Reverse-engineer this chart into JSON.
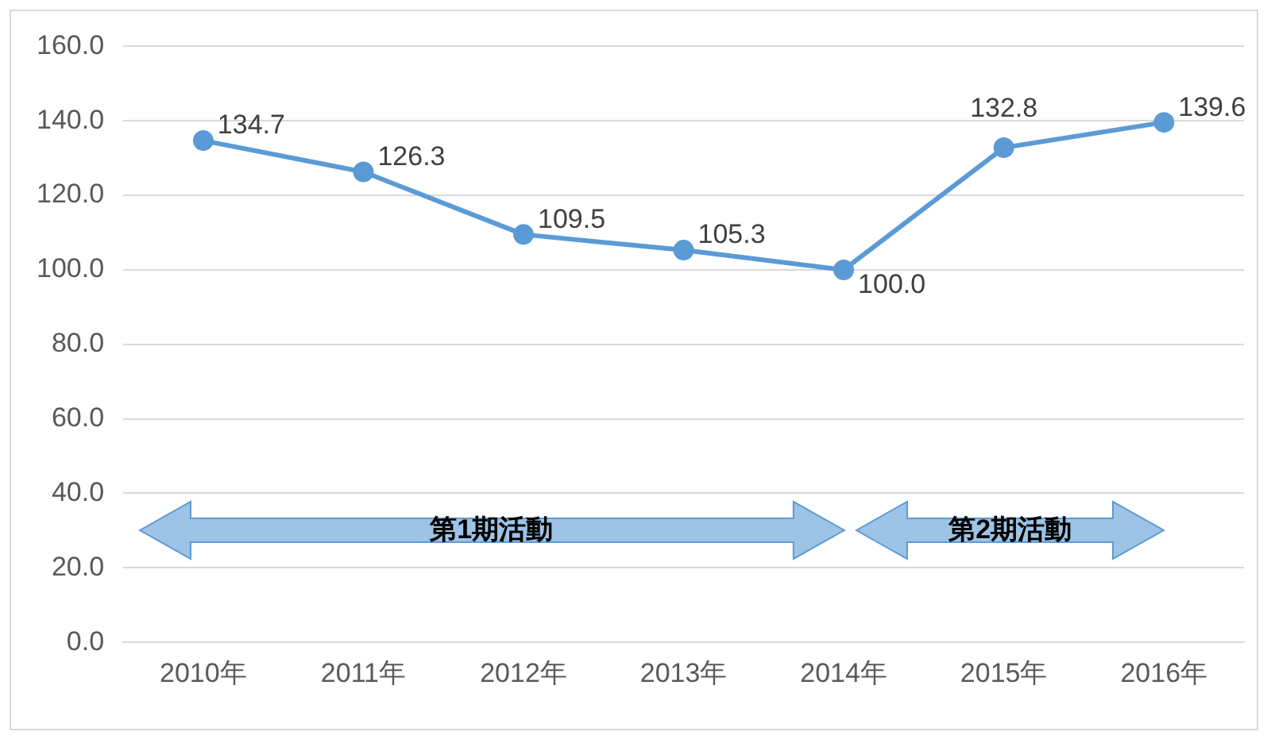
{
  "chart_data": {
    "type": "line",
    "categories": [
      "2010年",
      "2011年",
      "2012年",
      "2013年",
      "2014年",
      "2015年",
      "2016年"
    ],
    "series": [
      {
        "color": "#5b9bd5",
        "values": [
          134.7,
          126.3,
          109.5,
          105.3,
          100.0,
          132.8,
          139.6
        ],
        "value_labels": [
          "134.7",
          "126.3",
          "109.5",
          "105.3",
          "100.0",
          "132.8",
          "139.6"
        ]
      }
    ],
    "ylim": [
      0,
      160
    ],
    "yticks": [
      {
        "value": 0,
        "label": "0.0"
      },
      {
        "value": 20,
        "label": "20.0"
      },
      {
        "value": 40,
        "label": "40.0"
      },
      {
        "value": 60,
        "label": "60.0"
      },
      {
        "value": 80,
        "label": "80.0"
      },
      {
        "value": 100,
        "label": "100.0"
      },
      {
        "value": 120,
        "label": "120.0"
      },
      {
        "value": 140,
        "label": "140.0"
      },
      {
        "value": 160,
        "label": "160.0"
      }
    ],
    "grid": "y",
    "legend": false,
    "marker": "circle",
    "line_style": "solid",
    "annotations": [
      "第1期活動",
      "第2期活動"
    ]
  }
}
